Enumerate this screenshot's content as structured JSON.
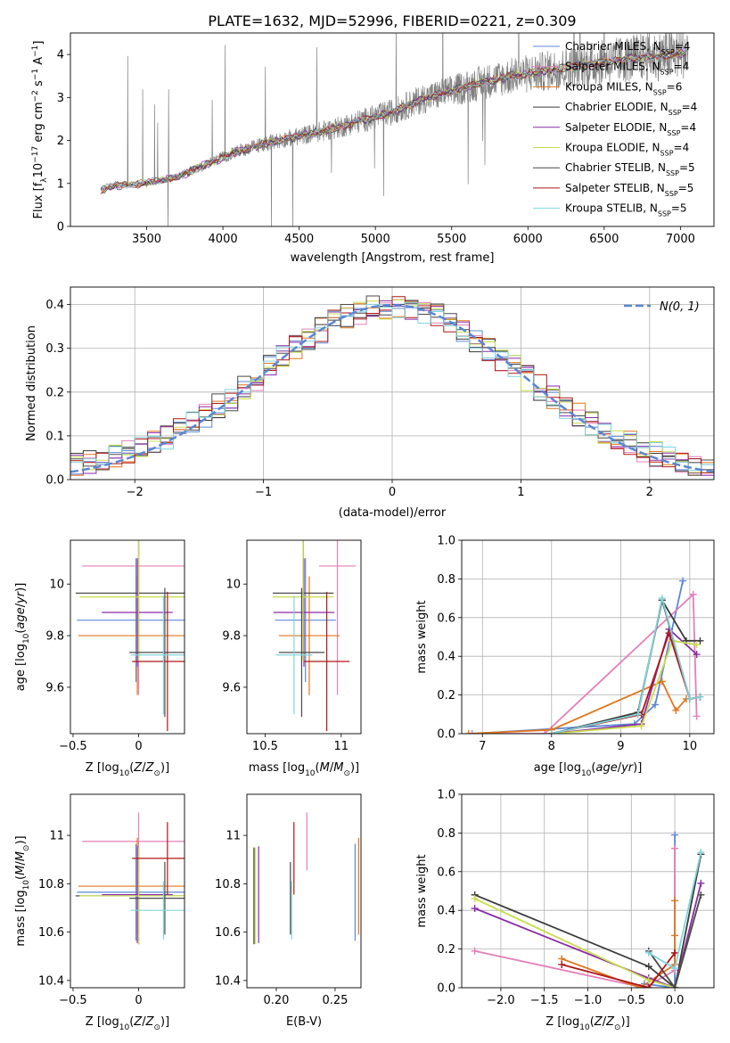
{
  "figure_title": "PLATE=1632, MJD=52996, FIBERID=0221, z=0.309",
  "colors": {
    "Chabrier MILES": "#5c87d6",
    "Salpeter MILES": "#e47fb8",
    "Kroupa MILES": "#e0761c",
    "Chabrier ELODIE": "#3a3a3a",
    "Salpeter ELODIE": "#8a2aa8",
    "Kroupa ELODIE": "#c8dc4a",
    "Chabrier STELIB": "#4a4a4a",
    "Salpeter STELIB": "#b01616",
    "Kroupa STELIB": "#80d4dc",
    "data": "#808080",
    "gauss": "#5a86d4"
  },
  "chart_data": [
    {
      "id": "spectrum",
      "type": "line",
      "xlabel": "wavelength [Angstrom, rest frame]",
      "ylabel": "Flux [f_λ 10^-17 erg cm^-2 s^-1 A^-1]",
      "xlim": [
        3000,
        7220
      ],
      "ylim": [
        0,
        4.5
      ],
      "xticks": [
        3500,
        4000,
        4500,
        5000,
        5500,
        6000,
        6500,
        7000
      ],
      "yticks": [
        0,
        1,
        2,
        3,
        4
      ],
      "grid": false,
      "legend_position": "right",
      "legend": [
        {
          "model": "Chabrier MILES",
          "label": "Chabrier MILES, N",
          "nssp": "=4"
        },
        {
          "model": "Salpeter MILES",
          "label": "Salpeter MILES, N",
          "nssp": "=4"
        },
        {
          "model": "Kroupa MILES",
          "label": "Kroupa MILES, N",
          "nssp": "=6"
        },
        {
          "model": "Chabrier ELODIE",
          "label": "Chabrier ELODIE, N",
          "nssp": "=4"
        },
        {
          "model": "Salpeter ELODIE",
          "label": "Salpeter ELODIE, N",
          "nssp": "=4"
        },
        {
          "model": "Kroupa ELODIE",
          "label": "Kroupa ELODIE, N",
          "nssp": "=4"
        },
        {
          "model": "Chabrier STELIB",
          "label": "Chabrier STELIB, N",
          "nssp": "=5"
        },
        {
          "model": "Salpeter STELIB",
          "label": "Salpeter STELIB, N",
          "nssp": "=5"
        },
        {
          "model": "Kroupa STELIB",
          "label": "Kroupa STELIB, N",
          "nssp": "=5"
        }
      ],
      "nssp_subscript": "SSP",
      "continuum_x": [
        3200,
        3300,
        3500,
        3700,
        3900,
        4100,
        4300,
        4500,
        4700,
        4900,
        5100,
        5300,
        5500,
        5700,
        5900,
        6100,
        6300,
        6500,
        6700,
        6900,
        7050
      ],
      "continuum_y": [
        0.85,
        0.95,
        1.0,
        1.15,
        1.45,
        1.75,
        1.95,
        2.1,
        2.25,
        2.45,
        2.65,
        2.95,
        3.15,
        3.35,
        3.5,
        3.6,
        3.72,
        3.82,
        3.92,
        3.98,
        4.05
      ],
      "x_start": 3200,
      "x_end": 7050
    },
    {
      "id": "residual_hist",
      "type": "line",
      "xlabel": "(data-model)/error",
      "ylabel": "Normed distribution",
      "xlim": [
        -2.5,
        2.5
      ],
      "ylim": [
        0,
        0.44
      ],
      "xticks": [
        -2,
        -1,
        0,
        1,
        2
      ],
      "xticklabels": [
        "−2",
        "−1",
        "0",
        "1",
        "2"
      ],
      "yticks": [
        0.0,
        0.1,
        0.2,
        0.3,
        0.4
      ],
      "grid": true,
      "legend_position": "top-right",
      "legend_label": "N(0, 1)",
      "bin_width": 0.1
    },
    {
      "id": "age_vs_Z",
      "type": "scatter",
      "xlabel": "Z [log10(Z/Z⊙)]",
      "ylabel": "age [log10(age/yr)]",
      "xlim": [
        -0.52,
        0.35
      ],
      "ylim": [
        9.42,
        10.17
      ],
      "xticks": [
        -0.5,
        0.0
      ],
      "yticks": [
        9.6,
        9.8,
        10.0
      ],
      "points": [
        {
          "model": "Chabrier MILES",
          "x": -0.02,
          "xerr": 0.45,
          "y": 9.86,
          "yerr": 0.24
        },
        {
          "model": "Salpeter MILES",
          "x": 0.0,
          "xerr": 0.43,
          "y": 10.07,
          "yerr": 0.5
        },
        {
          "model": "Kroupa MILES",
          "x": -0.01,
          "xerr": 0.45,
          "y": 9.8,
          "yerr": 0.23
        },
        {
          "model": "Chabrier ELODIE",
          "x": 0.0,
          "xerr": 0.48,
          "y": 9.965,
          "yerr": 0.25
        },
        {
          "model": "Salpeter ELODIE",
          "x": -0.01,
          "xerr": 0.27,
          "y": 9.89,
          "yerr": 0.21
        },
        {
          "model": "Kroupa ELODIE",
          "x": 0.0,
          "xerr": 0.45,
          "y": 9.95,
          "yerr": 0.25
        },
        {
          "model": "Chabrier STELIB",
          "x": 0.2,
          "xerr": 0.27,
          "y": 9.735,
          "yerr": 0.25
        },
        {
          "model": "Salpeter STELIB",
          "x": 0.22,
          "xerr": 0.27,
          "y": 9.7,
          "yerr": 0.27
        },
        {
          "model": "Kroupa STELIB",
          "x": 0.19,
          "xerr": 0.25,
          "y": 9.725,
          "yerr": 0.23
        }
      ]
    },
    {
      "id": "age_vs_mass",
      "type": "scatter",
      "xlabel": "mass [log10(M/M⊙)]",
      "ylabel": "",
      "xlim": [
        10.38,
        11.13
      ],
      "ylim": [
        9.42,
        10.17
      ],
      "xticks": [
        10.5,
        11.0
      ],
      "yticks": [
        9.6,
        9.8,
        10.0
      ],
      "points": [
        {
          "model": "Chabrier MILES",
          "x": 10.765,
          "xerr": 0.2,
          "y": 9.86,
          "yerr": 0.24
        },
        {
          "model": "Salpeter MILES",
          "x": 10.975,
          "xerr": 0.12,
          "y": 10.07,
          "yerr": 0.5
        },
        {
          "model": "Kroupa MILES",
          "x": 10.79,
          "xerr": 0.2,
          "y": 9.8,
          "yerr": 0.23
        },
        {
          "model": "Chabrier ELODIE",
          "x": 10.75,
          "xerr": 0.2,
          "y": 9.965,
          "yerr": 0.25
        },
        {
          "model": "Salpeter ELODIE",
          "x": 10.755,
          "xerr": 0.2,
          "y": 9.89,
          "yerr": 0.21
        },
        {
          "model": "Kroupa ELODIE",
          "x": 10.75,
          "xerr": 0.2,
          "y": 9.95,
          "yerr": 0.25
        },
        {
          "model": "Chabrier STELIB",
          "x": 10.74,
          "xerr": 0.15,
          "y": 9.735,
          "yerr": 0.25
        },
        {
          "model": "Salpeter STELIB",
          "x": 10.905,
          "xerr": 0.15,
          "y": 9.7,
          "yerr": 0.27
        },
        {
          "model": "Kroupa STELIB",
          "x": 10.69,
          "xerr": 0.12,
          "y": 9.725,
          "yerr": 0.23
        }
      ]
    },
    {
      "id": "weight_vs_age",
      "type": "line",
      "xlabel": "age [log10(age/yr)]",
      "ylabel": "mass weight",
      "xlim": [
        6.7,
        10.35
      ],
      "ylim": [
        0,
        1.0
      ],
      "xticks": [
        7,
        8,
        9,
        10
      ],
      "yticks": [
        0.0,
        0.2,
        0.4,
        0.6,
        0.8,
        1.0
      ],
      "grid": true,
      "series": [
        {
          "model": "Chabrier MILES",
          "x": [
            6.85,
            9.2,
            9.5,
            9.9
          ],
          "y": [
            0.0,
            0.05,
            0.15,
            0.79
          ]
        },
        {
          "model": "Salpeter MILES",
          "x": [
            6.85,
            7.9,
            10.05,
            10.1
          ],
          "y": [
            0.0,
            0.0,
            0.72,
            0.09
          ]
        },
        {
          "model": "Kroupa MILES",
          "x": [
            6.8,
            8.0,
            9.6,
            9.8,
            9.95
          ],
          "y": [
            0.0,
            0.02,
            0.27,
            0.12,
            0.18
          ]
        },
        {
          "model": "Chabrier ELODIE",
          "x": [
            8.0,
            9.25,
            9.6,
            9.95,
            10.15
          ],
          "y": [
            0.0,
            0.11,
            0.69,
            0.48,
            0.48
          ]
        },
        {
          "model": "Salpeter ELODIE",
          "x": [
            8.0,
            9.3,
            9.7,
            10.1
          ],
          "y": [
            0.0,
            0.05,
            0.54,
            0.41
          ]
        },
        {
          "model": "Kroupa ELODIE",
          "x": [
            8.0,
            9.3,
            9.75,
            10.1
          ],
          "y": [
            0.0,
            0.04,
            0.48,
            0.46
          ]
        },
        {
          "model": "Chabrier STELIB",
          "x": [
            8.0,
            9.25,
            9.6,
            10.0,
            10.15
          ],
          "y": [
            0.0,
            0.1,
            0.69,
            0.18,
            0.19
          ]
        },
        {
          "model": "Salpeter STELIB",
          "x": [
            8.0,
            9.3,
            9.7,
            10.0,
            10.15
          ],
          "y": [
            0.0,
            0.1,
            0.52,
            0.18,
            0.19
          ]
        },
        {
          "model": "Kroupa STELIB",
          "x": [
            8.0,
            9.25,
            9.6,
            10.0,
            10.15
          ],
          "y": [
            0.0,
            0.1,
            0.7,
            0.18,
            0.19
          ]
        }
      ]
    },
    {
      "id": "mass_vs_Z",
      "type": "scatter",
      "xlabel": "Z [log10(Z/Z⊙)]",
      "ylabel": "mass [log10(M/M⊙)]",
      "xlim": [
        -0.52,
        0.35
      ],
      "ylim": [
        10.37,
        11.17
      ],
      "xticks": [
        -0.5,
        0.0
      ],
      "yticks": [
        10.4,
        10.6,
        10.8,
        11.0
      ],
      "points": [
        {
          "model": "Chabrier MILES",
          "x": -0.02,
          "xerr": 0.45,
          "y": 10.765,
          "yerr": 0.2
        },
        {
          "model": "Salpeter MILES",
          "x": 0.0,
          "xerr": 0.43,
          "y": 10.975,
          "yerr": 0.12
        },
        {
          "model": "Kroupa MILES",
          "x": -0.01,
          "xerr": 0.45,
          "y": 10.79,
          "yerr": 0.2
        },
        {
          "model": "Chabrier ELODIE",
          "x": 0.0,
          "xerr": 0.48,
          "y": 10.75,
          "yerr": 0.2
        },
        {
          "model": "Salpeter ELODIE",
          "x": -0.01,
          "xerr": 0.27,
          "y": 10.755,
          "yerr": 0.2
        },
        {
          "model": "Kroupa ELODIE",
          "x": 0.0,
          "xerr": 0.45,
          "y": 10.75,
          "yerr": 0.2
        },
        {
          "model": "Chabrier STELIB",
          "x": 0.2,
          "xerr": 0.27,
          "y": 10.74,
          "yerr": 0.15
        },
        {
          "model": "Salpeter STELIB",
          "x": 0.22,
          "xerr": 0.27,
          "y": 10.905,
          "yerr": 0.15
        },
        {
          "model": "Kroupa STELIB",
          "x": 0.19,
          "xerr": 0.25,
          "y": 10.69,
          "yerr": 0.12
        }
      ]
    },
    {
      "id": "mass_vs_ebv",
      "type": "scatter",
      "xlabel": "E(B-V)",
      "ylabel": "",
      "xlim": [
        0.175,
        0.272
      ],
      "ylim": [
        10.37,
        11.17
      ],
      "xticks": [
        0.2,
        0.25
      ],
      "xticklabels": [
        "0.20",
        "0.25"
      ],
      "yticks": [
        10.4,
        10.6,
        10.8,
        11.0
      ],
      "points": [
        {
          "model": "Chabrier MILES",
          "x": 0.267,
          "y": 10.765,
          "yerr": 0.2
        },
        {
          "model": "Salpeter MILES",
          "x": 0.226,
          "y": 10.975,
          "yerr": 0.12
        },
        {
          "model": "Kroupa MILES",
          "x": 0.27,
          "y": 10.79,
          "yerr": 0.2
        },
        {
          "model": "Chabrier ELODIE",
          "x": 0.181,
          "y": 10.75,
          "yerr": 0.2
        },
        {
          "model": "Salpeter ELODIE",
          "x": 0.185,
          "y": 10.755,
          "yerr": 0.2
        },
        {
          "model": "Kroupa ELODIE",
          "x": 0.182,
          "y": 10.75,
          "yerr": 0.2
        },
        {
          "model": "Chabrier STELIB",
          "x": 0.212,
          "y": 10.74,
          "yerr": 0.15
        },
        {
          "model": "Salpeter STELIB",
          "x": 0.215,
          "y": 10.905,
          "yerr": 0.15
        },
        {
          "model": "Kroupa STELIB",
          "x": 0.213,
          "y": 10.69,
          "yerr": 0.12
        }
      ]
    },
    {
      "id": "weight_vs_Z",
      "type": "line",
      "xlabel": "Z [log10(Z/Z⊙)]",
      "ylabel": "mass weight",
      "xlim": [
        -2.45,
        0.45
      ],
      "ylim": [
        0,
        1.0
      ],
      "xticks": [
        -2.0,
        -1.5,
        -1.0,
        -0.5,
        0.0
      ],
      "xticklabels": [
        "−2.0",
        "−1.5",
        "−1.0",
        "−0.5",
        "0.0"
      ],
      "yticks": [
        0.0,
        0.2,
        0.4,
        0.6,
        0.8,
        1.0
      ],
      "grid": true,
      "series": [
        {
          "model": "Chabrier MILES",
          "x": [
            -0.35,
            0.0,
            0.0
          ],
          "y": [
            0.02,
            0.0,
            0.79
          ]
        },
        {
          "model": "Salpeter MILES",
          "x": [
            -2.3,
            -0.35,
            0.0,
            0.0
          ],
          "y": [
            0.19,
            0.0,
            0.09,
            0.72
          ]
        },
        {
          "model": "Kroupa MILES",
          "x": [
            -1.3,
            -0.4,
            0.0,
            0.0,
            0.0
          ],
          "y": [
            0.15,
            0.0,
            0.12,
            0.27,
            0.45
          ]
        },
        {
          "model": "Chabrier ELODIE",
          "x": [
            -2.3,
            -0.3,
            0.0,
            0.3
          ],
          "y": [
            0.48,
            0.11,
            0.0,
            0.69
          ]
        },
        {
          "model": "Salpeter ELODIE",
          "x": [
            -2.3,
            -0.3,
            0.0,
            0.3
          ],
          "y": [
            0.41,
            0.05,
            0.0,
            0.54
          ]
        },
        {
          "model": "Kroupa ELODIE",
          "x": [
            -2.3,
            -0.3,
            0.0,
            0.3
          ],
          "y": [
            0.46,
            0.04,
            0.0,
            0.48
          ]
        },
        {
          "model": "Chabrier STELIB",
          "x": [
            -0.3,
            0.0,
            0.3
          ],
          "y": [
            0.19,
            0.0,
            0.48
          ]
        },
        {
          "model": "Salpeter STELIB",
          "x": [
            -1.3,
            -0.3,
            0.0,
            0.0
          ],
          "y": [
            0.12,
            0.0,
            0.18,
            0.18
          ]
        },
        {
          "model": "Kroupa STELIB",
          "x": [
            -0.3,
            0.0,
            0.3
          ],
          "y": [
            0.18,
            0.1,
            0.7
          ]
        }
      ]
    }
  ]
}
